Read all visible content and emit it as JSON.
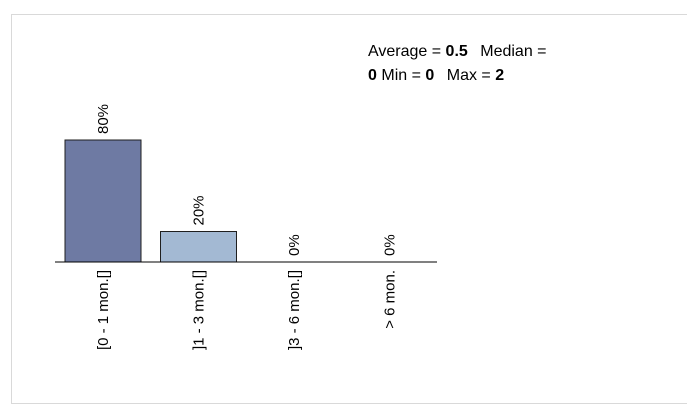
{
  "stats": {
    "average_label": "Average =",
    "average_value": "0.5",
    "median_label": "Median =",
    "median_value": "0",
    "min_label": "Min =",
    "min_value": "0",
    "max_label": "Max =",
    "max_value": "2"
  },
  "chart_data": {
    "type": "bar",
    "categories": [
      "[0 - 1 mon.[]",
      "]1 - 3 mon.[]",
      "]3 - 6 mon.[]",
      "> 6 mon."
    ],
    "values": [
      80,
      20,
      0,
      0
    ],
    "data_labels": [
      "80%",
      "20%",
      "0%",
      "0%"
    ],
    "ylim": [
      0,
      100
    ],
    "grid": false,
    "bar_colors": [
      "#6e7aa3",
      "#a3b9d3",
      "#c5d2e3",
      "#c5d2e3"
    ],
    "axis_color": "#000000"
  }
}
